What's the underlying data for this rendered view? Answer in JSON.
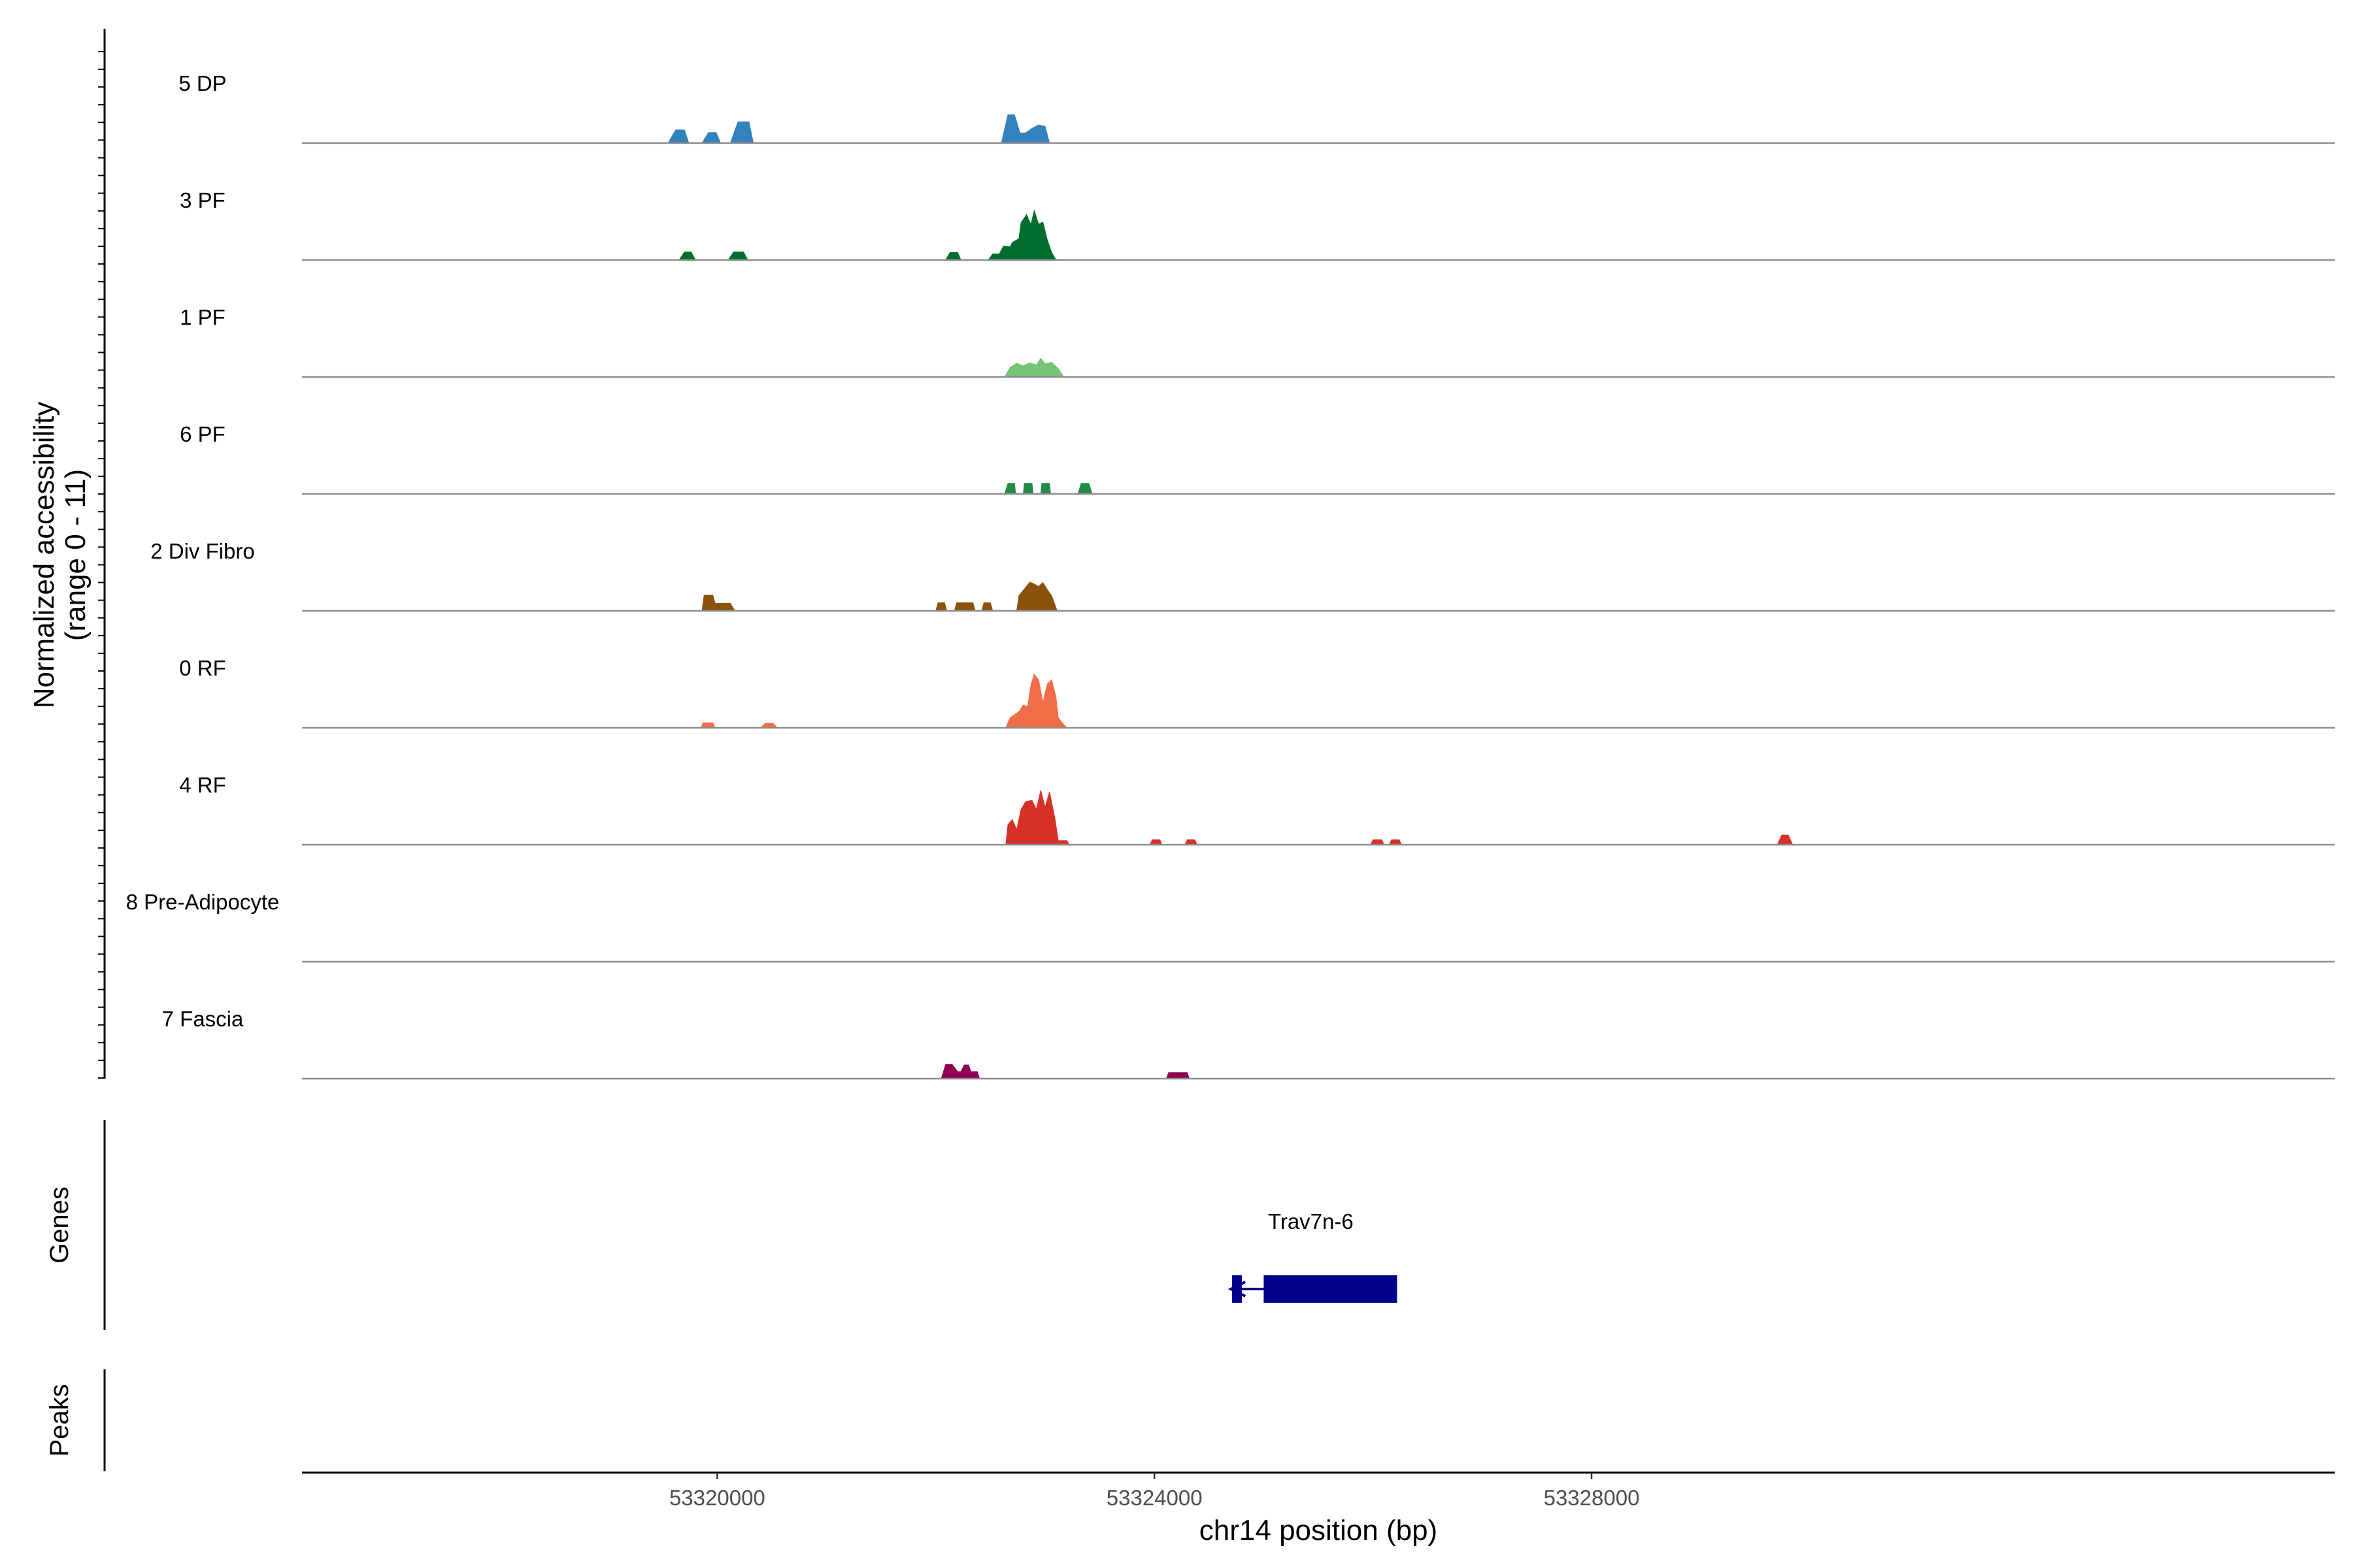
{
  "chart_data": {
    "type": "area",
    "subtype": "genome-coverage-tracks",
    "xlabel": "chr14 position (bp)",
    "ylabel": "Normalized accessibility\n(range 0 - 11)",
    "ylim": [
      0,
      11
    ],
    "xlim": [
      53316200,
      53334800
    ],
    "x_ticks": [
      {
        "value": 53320000,
        "label": "53320000"
      },
      {
        "value": 53324000,
        "label": "53324000"
      },
      {
        "value": 53328000,
        "label": "53328000"
      }
    ],
    "grid": false,
    "tracks": [
      {
        "name": "5 DP",
        "color": "#3182BD",
        "segments": [
          [
            [
              53319550,
              0
            ],
            [
              53319620,
              2.6
            ],
            [
              53319700,
              2.6
            ],
            [
              53319740,
              0
            ]
          ],
          [
            [
              53319860,
              0
            ],
            [
              53319920,
              2.1
            ],
            [
              53319990,
              2.1
            ],
            [
              53320030,
              0
            ]
          ],
          [
            [
              53320120,
              0
            ],
            [
              53320190,
              4.2
            ],
            [
              53320290,
              4.2
            ],
            [
              53320330,
              0
            ]
          ],
          [
            [
              53322600,
              0
            ],
            [
              53322660,
              5.6
            ],
            [
              53322720,
              5.6
            ],
            [
              53322770,
              2.0
            ],
            [
              53322820,
              2.0
            ],
            [
              53322880,
              2.9
            ],
            [
              53322940,
              3.6
            ],
            [
              53323000,
              3.3
            ],
            [
              53323040,
              0
            ]
          ]
        ]
      },
      {
        "name": "3 PF",
        "color": "#006D2C",
        "segments": [
          [
            [
              53319650,
              0
            ],
            [
              53319700,
              1.6
            ],
            [
              53319760,
              1.6
            ],
            [
              53319800,
              0
            ]
          ],
          [
            [
              53320100,
              0
            ],
            [
              53320150,
              1.6
            ],
            [
              53320240,
              1.6
            ],
            [
              53320280,
              0
            ]
          ],
          [
            [
              53322090,
              0
            ],
            [
              53322130,
              1.5
            ],
            [
              53322200,
              1.5
            ],
            [
              53322230,
              0
            ]
          ],
          [
            [
              53322480,
              0
            ],
            [
              53322520,
              1.2
            ],
            [
              53322560,
              1.2
            ],
            [
              53322580,
              1.2
            ],
            [
              53322620,
              2.8
            ],
            [
              53322680,
              2.6
            ],
            [
              53322700,
              3.5
            ],
            [
              53322760,
              4.2
            ],
            [
              53322780,
              7.4
            ],
            [
              53322830,
              9.0
            ],
            [
              53322870,
              7.0
            ],
            [
              53322900,
              9.8
            ],
            [
              53322940,
              7.1
            ],
            [
              53322980,
              7.5
            ],
            [
              53323020,
              4.0
            ],
            [
              53323060,
              1.5
            ],
            [
              53323100,
              0
            ]
          ]
        ]
      },
      {
        "name": "1 PF",
        "color": "#74C476",
        "segments": [
          [
            [
              53322630,
              0
            ],
            [
              53322680,
              1.9
            ],
            [
              53322740,
              2.7
            ],
            [
              53322800,
              2.2
            ],
            [
              53322860,
              2.8
            ],
            [
              53322920,
              2.4
            ],
            [
              53322960,
              3.7
            ],
            [
              53323000,
              2.6
            ],
            [
              53323060,
              2.9
            ],
            [
              53323120,
              1.7
            ],
            [
              53323170,
              0
            ]
          ]
        ]
      },
      {
        "name": "6 PF",
        "color": "#238B45",
        "segments": [
          [
            [
              53322630,
              0
            ],
            [
              53322660,
              2.1
            ],
            [
              53322720,
              2.1
            ],
            [
              53322730,
              0
            ]
          ],
          [
            [
              53322800,
              0
            ],
            [
              53322810,
              2.1
            ],
            [
              53322880,
              2.1
            ],
            [
              53322890,
              0
            ]
          ],
          [
            [
              53322960,
              0
            ],
            [
              53322970,
              2.1
            ],
            [
              53323040,
              2.1
            ],
            [
              53323050,
              0
            ]
          ],
          [
            [
              53323300,
              0
            ],
            [
              53323330,
              2.1
            ],
            [
              53323400,
              2.1
            ],
            [
              53323430,
              0
            ]
          ]
        ]
      },
      {
        "name": "2 Div Fibro",
        "color": "#8C510A",
        "segments": [
          [
            [
              53319860,
              0
            ],
            [
              53319880,
              3.1
            ],
            [
              53319960,
              3.1
            ],
            [
              53319980,
              1.5
            ],
            [
              53320120,
              1.5
            ],
            [
              53320160,
              0
            ]
          ],
          [
            [
              53322000,
              0
            ],
            [
              53322020,
              1.6
            ],
            [
              53322080,
              1.6
            ],
            [
              53322100,
              0
            ]
          ],
          [
            [
              53322170,
              0
            ],
            [
              53322190,
              1.6
            ],
            [
              53322340,
              1.6
            ],
            [
              53322360,
              0
            ]
          ],
          [
            [
              53322420,
              0
            ],
            [
              53322440,
              1.6
            ],
            [
              53322500,
              1.6
            ],
            [
              53322520,
              0
            ]
          ],
          [
            [
              53322740,
              0
            ],
            [
              53322760,
              3.0
            ],
            [
              53322820,
              4.6
            ],
            [
              53322860,
              5.7
            ],
            [
              53322900,
              5.3
            ],
            [
              53322940,
              4.8
            ],
            [
              53322980,
              5.6
            ],
            [
              53323020,
              4.2
            ],
            [
              53323060,
              3.0
            ],
            [
              53323090,
              1.2
            ],
            [
              53323110,
              0
            ]
          ]
        ]
      },
      {
        "name": "0 RF",
        "color": "#F16D48",
        "segments": [
          [
            [
              53319850,
              0
            ],
            [
              53319870,
              1.0
            ],
            [
              53319960,
              1.0
            ],
            [
              53319980,
              0
            ]
          ],
          [
            [
              53320400,
              0
            ],
            [
              53320440,
              0.9
            ],
            [
              53320510,
              0.9
            ],
            [
              53320550,
              0
            ]
          ],
          [
            [
              53322640,
              0
            ],
            [
              53322680,
              2.0
            ],
            [
              53322760,
              3.2
            ],
            [
              53322800,
              4.5
            ],
            [
              53322840,
              4.2
            ],
            [
              53322870,
              8.5
            ],
            [
              53322900,
              10.6
            ],
            [
              53322940,
              9.5
            ],
            [
              53322980,
              5.0
            ],
            [
              53323020,
              8.7
            ],
            [
              53323060,
              9.5
            ],
            [
              53323100,
              6.0
            ],
            [
              53323120,
              2.0
            ],
            [
              53323160,
              0.9
            ],
            [
              53323200,
              0
            ]
          ]
        ]
      },
      {
        "name": "4 RF",
        "color": "#D73027",
        "segments": [
          [
            [
              53322640,
              0
            ],
            [
              53322660,
              4.0
            ],
            [
              53322700,
              5.0
            ],
            [
              53322740,
              3.0
            ],
            [
              53322780,
              7.0
            ],
            [
              53322820,
              8.5
            ],
            [
              53322880,
              8.8
            ],
            [
              53322920,
              7.0
            ],
            [
              53322960,
              10.8
            ],
            [
              53323000,
              7.4
            ],
            [
              53323040,
              10.5
            ],
            [
              53323090,
              5.2
            ],
            [
              53323120,
              0.8
            ],
            [
              53323200,
              0.8
            ],
            [
              53323220,
              0
            ]
          ],
          [
            [
              53323960,
              0
            ],
            [
              53323980,
              1.0
            ],
            [
              53324050,
              1.0
            ],
            [
              53324070,
              0
            ]
          ],
          [
            [
              53324280,
              0
            ],
            [
              53324300,
              1.0
            ],
            [
              53324370,
              1.0
            ],
            [
              53324390,
              0
            ]
          ],
          [
            [
              53325980,
              0
            ],
            [
              53326000,
              1.0
            ],
            [
              53326080,
              1.0
            ],
            [
              53326100,
              0
            ]
          ],
          [
            [
              53326150,
              0
            ],
            [
              53326170,
              1.0
            ],
            [
              53326240,
              1.0
            ],
            [
              53326260,
              0
            ]
          ],
          [
            [
              53329700,
              0
            ],
            [
              53329740,
              1.9
            ],
            [
              53329800,
              1.9
            ],
            [
              53329840,
              0
            ]
          ]
        ]
      },
      {
        "name": "8 Pre-Adipocyte",
        "color": "#7A6AA8",
        "segments": []
      },
      {
        "name": "7 Fascia",
        "color": "#8E0152",
        "segments": [
          [
            [
              53322050,
              0
            ],
            [
              53322090,
              2.8
            ],
            [
              53322150,
              2.8
            ],
            [
              53322200,
              1.4
            ],
            [
              53322230,
              1.4
            ],
            [
              53322260,
              2.7
            ],
            [
              53322300,
              2.7
            ],
            [
              53322320,
              1.4
            ],
            [
              53322380,
              1.4
            ],
            [
              53322400,
              0
            ]
          ],
          [
            [
              53324110,
              0
            ],
            [
              53324130,
              1.2
            ],
            [
              53324300,
              1.2
            ],
            [
              53324320,
              0
            ]
          ]
        ]
      }
    ],
    "genes": [
      {
        "name": "Trav7n-6",
        "strand": "-",
        "start": 53324700,
        "end": 53326220,
        "exons": [
          [
            53324710,
            53324800
          ],
          [
            53325000,
            53326220
          ]
        ],
        "color": "#00008B"
      }
    ],
    "panels": {
      "genes": "Genes",
      "peaks": "Peaks"
    }
  }
}
